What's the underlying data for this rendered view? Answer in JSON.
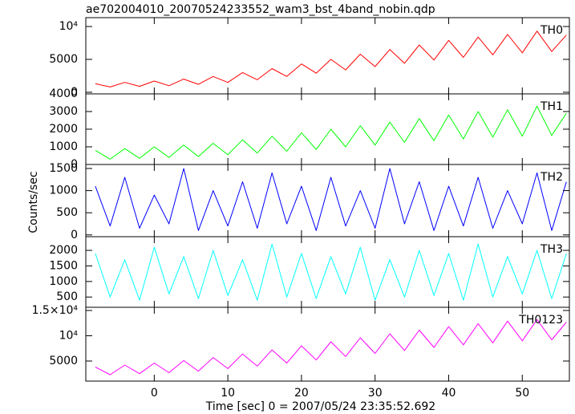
{
  "chart_data": [
    {
      "type": "line",
      "title": "ae702004010_20070524233552_wam3_bst_4band_nobin.qdp",
      "x": [
        -8,
        -6,
        -4,
        -2,
        0,
        2,
        4,
        6,
        8,
        10,
        12,
        14,
        16,
        18,
        20,
        22,
        24,
        26,
        28,
        30,
        32,
        34,
        36,
        38,
        40,
        42,
        44,
        46,
        48,
        50,
        52,
        54,
        56
      ],
      "xlim": [
        -9.3,
        56.4
      ],
      "xticks": [
        0,
        10,
        20,
        30,
        40,
        50
      ],
      "ylim": [
        -250,
        11350
      ],
      "yticks": [
        0,
        5000,
        {
          "value": 10000,
          "label": "10⁴"
        }
      ],
      "series": [
        {
          "name": "TH0",
          "color": "#ff0000",
          "values": [
            1300,
            800,
            1500,
            900,
            1700,
            1000,
            2000,
            1200,
            2400,
            1500,
            3000,
            1900,
            3600,
            2400,
            4300,
            2900,
            5000,
            3400,
            5800,
            3900,
            6500,
            4400,
            7200,
            4900,
            7900,
            5300,
            8400,
            5700,
            8800,
            6000,
            9300,
            6200,
            8700
          ]
        }
      ]
    },
    {
      "type": "line",
      "x": [
        -8,
        -6,
        -4,
        -2,
        0,
        2,
        4,
        6,
        8,
        10,
        12,
        14,
        16,
        18,
        20,
        22,
        24,
        26,
        28,
        30,
        32,
        34,
        36,
        38,
        40,
        42,
        44,
        46,
        48,
        50,
        52,
        54,
        56
      ],
      "xlim": [
        -9.3,
        56.4
      ],
      "xticks": [
        0,
        10,
        20,
        30,
        40,
        50
      ],
      "ylim": [
        0,
        4000
      ],
      "yticks": [
        0,
        1000,
        2000,
        3000,
        4000
      ],
      "series": [
        {
          "name": "TH1",
          "color": "#00ff00",
          "values": [
            800,
            300,
            900,
            350,
            1000,
            400,
            1100,
            450,
            1200,
            550,
            1400,
            650,
            1600,
            750,
            1800,
            850,
            2000,
            1000,
            2200,
            1100,
            2400,
            1250,
            2600,
            1350,
            2800,
            1450,
            3000,
            1550,
            3100,
            1600,
            3300,
            1650,
            2900
          ]
        }
      ]
    },
    {
      "type": "line",
      "y_label": "Counts/sec",
      "x": [
        -8,
        -6,
        -4,
        -2,
        0,
        2,
        4,
        6,
        8,
        10,
        12,
        14,
        16,
        18,
        20,
        22,
        24,
        26,
        28,
        30,
        32,
        34,
        36,
        38,
        40,
        42,
        44,
        46,
        48,
        50,
        52,
        54,
        56
      ],
      "xlim": [
        -9.3,
        56.4
      ],
      "xticks": [
        0,
        10,
        20,
        30,
        40,
        50
      ],
      "ylim": [
        -40,
        1590
      ],
      "yticks": [
        0,
        500,
        1000,
        1500
      ],
      "series": [
        {
          "name": "TH2",
          "color": "#0000ff",
          "values": [
            1100,
            200,
            1300,
            150,
            900,
            250,
            1500,
            100,
            1000,
            200,
            1200,
            150,
            1400,
            250,
            1100,
            100,
            1300,
            200,
            1000,
            150,
            1500,
            250,
            1200,
            100,
            1100,
            200,
            1300,
            150,
            1000,
            250,
            1400,
            100,
            1200
          ]
        }
      ]
    },
    {
      "type": "line",
      "x": [
        -8,
        -6,
        -4,
        -2,
        0,
        2,
        4,
        6,
        8,
        10,
        12,
        14,
        16,
        18,
        20,
        22,
        24,
        26,
        28,
        30,
        32,
        34,
        36,
        38,
        40,
        42,
        44,
        46,
        48,
        50,
        52,
        54,
        56
      ],
      "xlim": [
        -9.3,
        56.4
      ],
      "xticks": [
        0,
        10,
        20,
        30,
        40,
        50
      ],
      "ylim": [
        170,
        2440
      ],
      "yticks": [
        500,
        1000,
        1500,
        2000
      ],
      "series": [
        {
          "name": "TH3",
          "color": "#00ffff",
          "values": [
            1900,
            500,
            1700,
            400,
            2100,
            600,
            1800,
            450,
            2000,
            550,
            1700,
            400,
            2200,
            500,
            1900,
            450,
            1800,
            600,
            2100,
            400,
            1700,
            500,
            2000,
            550,
            1900,
            400,
            2200,
            500,
            1800,
            600,
            2000,
            450,
            1900
          ]
        }
      ]
    },
    {
      "type": "line",
      "x_label": "Time [sec] 0 = 2007/05/24 23:35:52.692",
      "x": [
        -8,
        -6,
        -4,
        -2,
        0,
        2,
        4,
        6,
        8,
        10,
        12,
        14,
        16,
        18,
        20,
        22,
        24,
        26,
        28,
        30,
        32,
        34,
        36,
        38,
        40,
        42,
        44,
        46,
        48,
        50,
        52,
        54,
        56
      ],
      "xlim": [
        -9.3,
        56.4
      ],
      "xticks": [
        0,
        10,
        20,
        30,
        40,
        50
      ],
      "ylim": [
        1030,
        15630
      ],
      "yticks": [
        5000,
        {
          "value": 10000,
          "label": "10⁴"
        },
        {
          "value": 15000,
          "label": "1.5×10⁴"
        }
      ],
      "series": [
        {
          "name": "TH0123",
          "color": "#ff00ff",
          "values": [
            3800,
            2300,
            4200,
            2500,
            4600,
            2700,
            5100,
            3000,
            5700,
            3500,
            6400,
            4000,
            7200,
            4600,
            8000,
            5200,
            8800,
            5900,
            9600,
            6500,
            10400,
            7100,
            11100,
            7700,
            11800,
            8200,
            12400,
            8600,
            12900,
            9000,
            13200,
            9200,
            12700
          ]
        }
      ]
    }
  ]
}
